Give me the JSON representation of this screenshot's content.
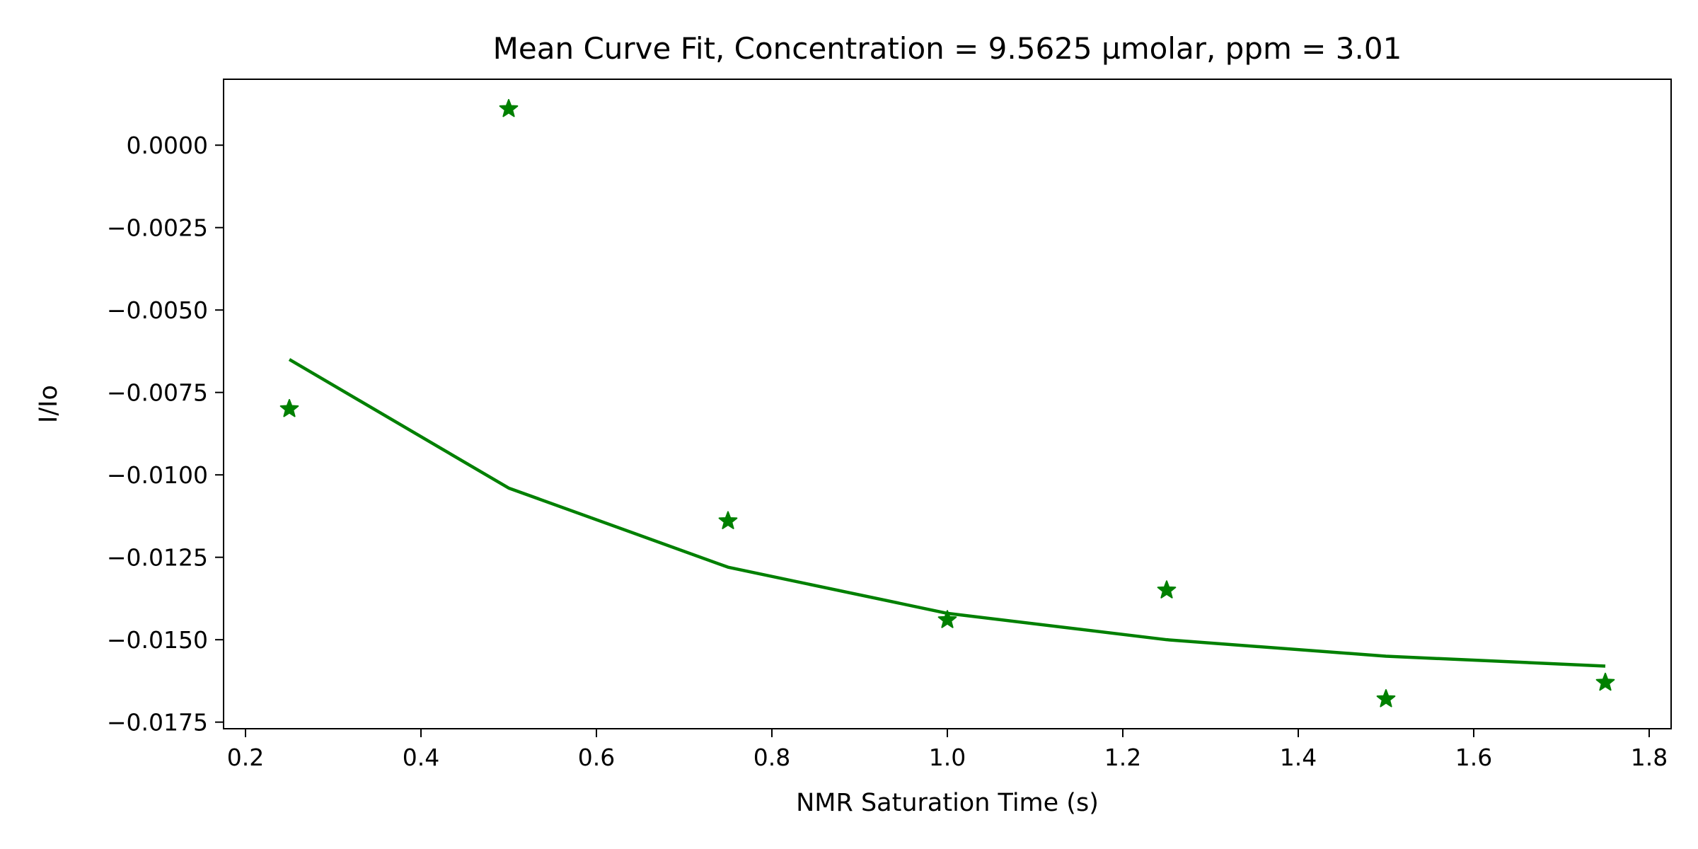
{
  "chart_data": {
    "type": "scatter",
    "title": "Mean Curve Fit, Concentration = 9.5625 µmolar, ppm = 3.01",
    "xlabel": "NMR Saturation Time (s)",
    "ylabel": "I/Io",
    "xlim": [
      0.175,
      1.825
    ],
    "ylim": [
      -0.0177,
      0.002
    ],
    "x_ticks": [
      0.2,
      0.4,
      0.6,
      0.8,
      1.0,
      1.2,
      1.4,
      1.6,
      1.8
    ],
    "x_tick_labels": [
      "0.2",
      "0.4",
      "0.6",
      "0.8",
      "1.0",
      "1.2",
      "1.4",
      "1.6",
      "1.8"
    ],
    "y_ticks": [
      0.0,
      -0.0025,
      -0.005,
      -0.0075,
      -0.01,
      -0.0125,
      -0.015,
      -0.0175
    ],
    "y_tick_labels": [
      "0.0000",
      "−0.0025",
      "−0.0050",
      "−0.0075",
      "−0.0100",
      "−0.0125",
      "−0.0150",
      "−0.0175"
    ],
    "grid": false,
    "series": [
      {
        "kind": "scatter",
        "marker": "star",
        "color": "#008000",
        "x": [
          0.25,
          0.5,
          0.75,
          1.0,
          1.25,
          1.5,
          1.75
        ],
        "y": [
          -0.008,
          0.0011,
          -0.0114,
          -0.0144,
          -0.0135,
          -0.0168,
          -0.0163
        ]
      },
      {
        "kind": "line",
        "color": "#008000",
        "x": [
          0.25,
          0.5,
          0.75,
          1.0,
          1.25,
          1.5,
          1.75
        ],
        "y": [
          -0.0065,
          -0.0104,
          -0.0128,
          -0.0142,
          -0.015,
          -0.0155,
          -0.0158
        ]
      }
    ]
  }
}
